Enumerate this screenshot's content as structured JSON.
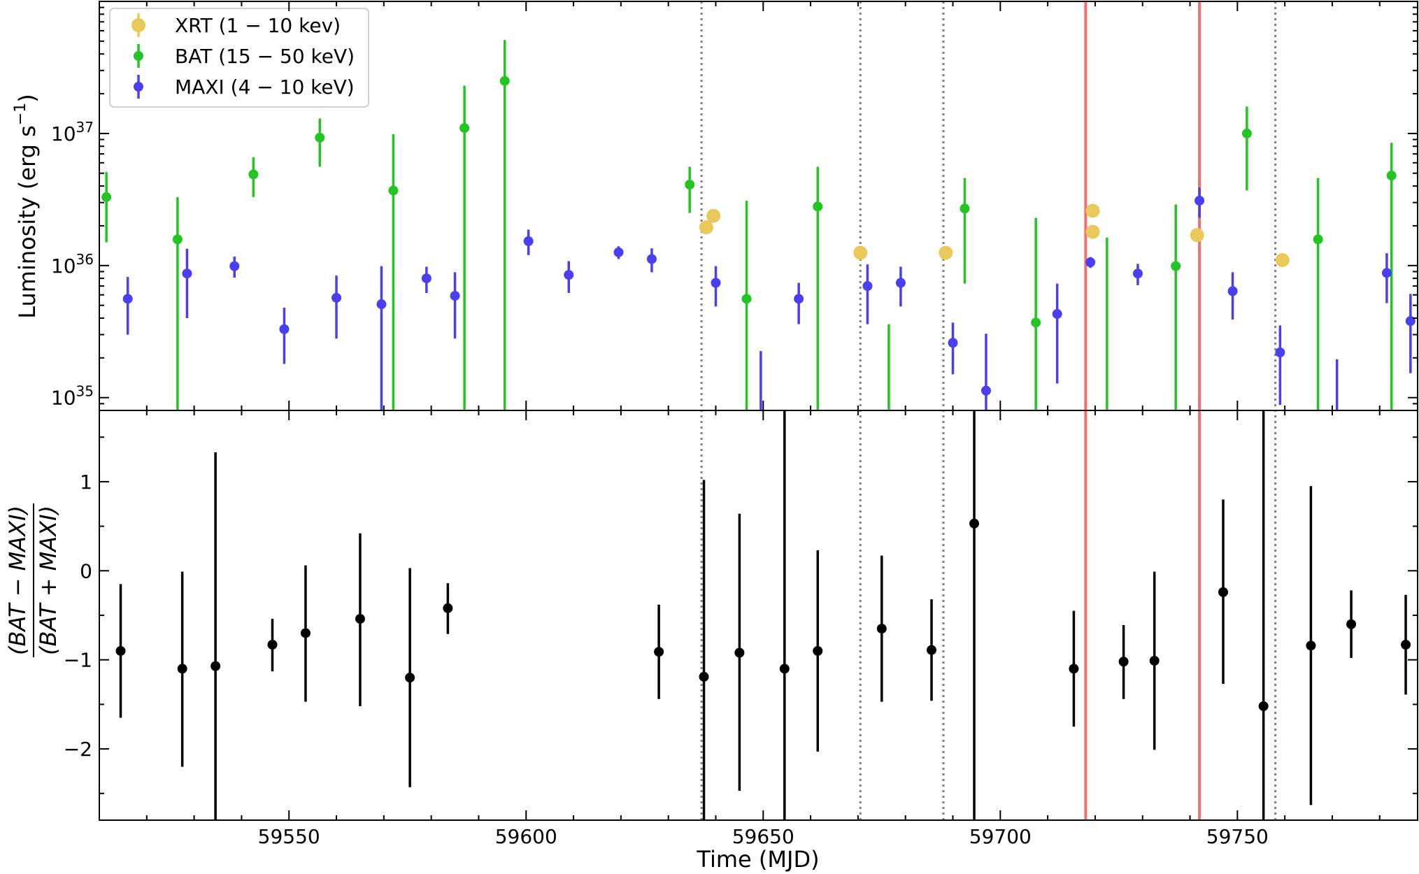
{
  "chart_data": [
    {
      "type": "scatter",
      "panel": "top",
      "ylabel_main": "Luminosity (erg s",
      "ylabel_sup": "−1",
      "ylabel_close": ")",
      "yscale": "log",
      "ylim": [
        8e+34,
        1e+38
      ],
      "xlim": [
        59510,
        59788
      ],
      "yticks": [
        {
          "value": 1e+35,
          "base": "10",
          "exp": "35"
        },
        {
          "value": 1e+36,
          "base": "10",
          "exp": "36"
        },
        {
          "value": 1e+37,
          "base": "10",
          "exp": "37"
        }
      ],
      "legend": {
        "position": "top-left"
      },
      "series": [
        {
          "name": "XRT (1 − 10 kev)",
          "color": "#e8c95a",
          "marker": "large-circle",
          "points": [
            {
              "x": 59638.0,
              "y": 1.95e+36
            },
            {
              "x": 59639.5,
              "y": 2.38e+36
            },
            {
              "x": 59670.5,
              "y": 1.25e+36
            },
            {
              "x": 59688.5,
              "y": 1.25e+36
            },
            {
              "x": 59719.5,
              "y": 2.6e+36
            },
            {
              "x": 59719.5,
              "y": 1.8e+36
            },
            {
              "x": 59741.5,
              "y": 1.7e+36
            },
            {
              "x": 59759.5,
              "y": 1.1e+36
            }
          ]
        },
        {
          "name": "BAT (15 − 50 keV)",
          "color": "#22c522",
          "marker": "circle",
          "points": [
            {
              "x": 59511.5,
              "y": 3.3e+36,
              "lo": 1.5e+36,
              "hi": 5.1e+36
            },
            {
              "x": 59526.5,
              "y": 1.58e+36,
              "lo": 8e+34,
              "hi": 3.3e+36
            },
            {
              "x": 59542.5,
              "y": 4.9e+36,
              "lo": 3.3e+36,
              "hi": 6.6e+36
            },
            {
              "x": 59556.5,
              "y": 9.3e+36,
              "lo": 5.6e+36,
              "hi": 1.3e+37
            },
            {
              "x": 59572.0,
              "y": 3.7e+36,
              "lo": 8e+34,
              "hi": 9.9e+36
            },
            {
              "x": 59587.0,
              "y": 1.1e+37,
              "lo": 8e+34,
              "hi": 2.3e+37
            },
            {
              "x": 59595.5,
              "y": 2.5e+37,
              "lo": 8e+34,
              "hi": 5.1e+37
            },
            {
              "x": 59634.5,
              "y": 4.1e+36,
              "lo": 2.5e+36,
              "hi": 5.6e+36
            },
            {
              "x": 59646.5,
              "y": 5.6e+35,
              "lo": 8e+34,
              "hi": 3.1e+36
            },
            {
              "x": 59661.5,
              "y": 2.8e+36,
              "lo": 8e+34,
              "hi": 5.6e+36
            },
            {
              "x": 59676.5,
              "y": 8e+34,
              "lo": 8e+34,
              "hi": 3.6e+35
            },
            {
              "x": 59692.5,
              "y": 2.7e+36,
              "lo": 7.3e+35,
              "hi": 4.6e+36
            },
            {
              "x": 59707.5,
              "y": 3.7e+35,
              "lo": 8e+34,
              "hi": 2.3e+36
            },
            {
              "x": 59722.5,
              "y": 8e+34,
              "lo": 8e+34,
              "hi": 1.63e+36
            },
            {
              "x": 59737.0,
              "y": 9.9e+35,
              "lo": 8e+34,
              "hi": 2.9e+36
            },
            {
              "x": 59752.0,
              "y": 1e+37,
              "lo": 3.7e+36,
              "hi": 1.6e+37
            },
            {
              "x": 59767.0,
              "y": 1.58e+36,
              "lo": 8e+34,
              "hi": 4.6e+36
            },
            {
              "x": 59782.5,
              "y": 4.8e+36,
              "lo": 8e+34,
              "hi": 8.5e+36
            }
          ]
        },
        {
          "name": "MAXI (4 − 10 keV)",
          "color": "#4a3ff0",
          "marker": "circle",
          "points": [
            {
              "x": 59516.0,
              "y": 5.6e+35,
              "lo": 3e+35,
              "hi": 8.2e+35
            },
            {
              "x": 59528.5,
              "y": 8.7e+35,
              "lo": 4e+35,
              "hi": 1.34e+36
            },
            {
              "x": 59538.5,
              "y": 9.9e+35,
              "lo": 8.1e+35,
              "hi": 1.17e+36
            },
            {
              "x": 59549.0,
              "y": 3.3e+35,
              "lo": 1.8e+35,
              "hi": 4.8e+35
            },
            {
              "x": 59560.0,
              "y": 5.7e+35,
              "lo": 2.8e+35,
              "hi": 8.4e+35
            },
            {
              "x": 59569.5,
              "y": 5.1e+35,
              "lo": 8e+34,
              "hi": 9.9e+35
            },
            {
              "x": 59579.0,
              "y": 8e+35,
              "lo": 6.2e+35,
              "hi": 9.8e+35
            },
            {
              "x": 59585.0,
              "y": 5.9e+35,
              "lo": 2.8e+35,
              "hi": 8.9e+35
            },
            {
              "x": 59600.5,
              "y": 1.53e+36,
              "lo": 1.2e+36,
              "hi": 1.87e+36
            },
            {
              "x": 59609.0,
              "y": 8.5e+35,
              "lo": 6.2e+35,
              "hi": 1.08e+36
            },
            {
              "x": 59619.5,
              "y": 1.26e+36,
              "lo": 1.12e+36,
              "hi": 1.4e+36
            },
            {
              "x": 59626.5,
              "y": 1.12e+36,
              "lo": 8.9e+35,
              "hi": 1.35e+36
            },
            {
              "x": 59640.0,
              "y": 7.4e+35,
              "lo": 4.9e+35,
              "hi": 9.9e+35
            },
            {
              "x": 59649.5,
              "y": 8e+34,
              "lo": 8e+34,
              "hi": 2.25e+35
            },
            {
              "x": 59657.5,
              "y": 5.6e+35,
              "lo": 3.6e+35,
              "hi": 7.4e+35
            },
            {
              "x": 59672.0,
              "y": 7e+35,
              "lo": 3.6e+35,
              "hi": 1.02e+36
            },
            {
              "x": 59679.0,
              "y": 7.4e+35,
              "lo": 4.9e+35,
              "hi": 9.8e+35
            },
            {
              "x": 59690.0,
              "y": 2.6e+35,
              "lo": 1.5e+35,
              "hi": 3.7e+35
            },
            {
              "x": 59697.0,
              "y": 1.13e+35,
              "lo": 8e+34,
              "hi": 3.05e+35
            },
            {
              "x": 59712.0,
              "y": 4.3e+35,
              "lo": 1.28e+35,
              "hi": 7.3e+35
            },
            {
              "x": 59719.0,
              "y": 1.06e+36,
              "lo": 9.6e+35,
              "hi": 1.16e+36
            },
            {
              "x": 59729.0,
              "y": 8.7e+35,
              "lo": 7.1e+35,
              "hi": 1.03e+36
            },
            {
              "x": 59742.0,
              "y": 3.1e+36,
              "lo": 2.3e+36,
              "hi": 3.9e+36
            },
            {
              "x": 59749.0,
              "y": 6.4e+35,
              "lo": 3.9e+35,
              "hi": 8.9e+35
            },
            {
              "x": 59759.0,
              "y": 2.2e+35,
              "lo": 8.8e+34,
              "hi": 3.52e+35
            },
            {
              "x": 59771.0,
              "y": 8e+34,
              "lo": 8e+34,
              "hi": 1.95e+35
            },
            {
              "x": 59781.5,
              "y": 8.8e+35,
              "lo": 5.2e+35,
              "hi": 1.24e+36
            },
            {
              "x": 59786.5,
              "y": 3.8e+35,
              "lo": 1.53e+35,
              "hi": 6.1e+35
            }
          ]
        }
      ]
    },
    {
      "type": "scatter",
      "panel": "bottom",
      "ylabel_numerator": "(BAT − MAXI)",
      "ylabel_denominator": "(BAT + MAXI)",
      "xlabel": "Time (MJD)",
      "xlim": [
        59510,
        59788
      ],
      "ylim": [
        -2.8,
        1.8
      ],
      "xticks": [
        {
          "value": 59550,
          "label": "59550"
        },
        {
          "value": 59600,
          "label": "59600"
        },
        {
          "value": 59650,
          "label": "59650"
        },
        {
          "value": 59700,
          "label": "59700"
        },
        {
          "value": 59750,
          "label": "59750"
        }
      ],
      "yticks": [
        {
          "value": 1,
          "label": "1"
        },
        {
          "value": 0,
          "label": "0"
        },
        {
          "value": -1,
          "label": "−1"
        },
        {
          "value": -2,
          "label": "−2"
        }
      ],
      "series": [
        {
          "color": "#000000",
          "points": [
            {
              "x": 59514.5,
              "y": -0.9,
              "lo": -1.65,
              "hi": -0.15
            },
            {
              "x": 59527.5,
              "y": -1.1,
              "lo": -2.2,
              "hi": -0.01
            },
            {
              "x": 59534.5,
              "y": -1.07,
              "lo": -2.8,
              "hi": 1.33
            },
            {
              "x": 59546.5,
              "y": -0.83,
              "lo": -1.13,
              "hi": -0.54
            },
            {
              "x": 59553.5,
              "y": -0.7,
              "lo": -1.47,
              "hi": 0.06
            },
            {
              "x": 59565.0,
              "y": -0.54,
              "lo": -1.52,
              "hi": 0.42
            },
            {
              "x": 59575.5,
              "y": -1.2,
              "lo": -2.43,
              "hi": 0.03
            },
            {
              "x": 59583.5,
              "y": -0.42,
              "lo": -0.71,
              "hi": -0.14
            },
            {
              "x": 59628.0,
              "y": -0.91,
              "lo": -1.44,
              "hi": -0.38
            },
            {
              "x": 59637.5,
              "y": -1.19,
              "lo": -2.8,
              "hi": 1.02
            },
            {
              "x": 59645.0,
              "y": -0.92,
              "lo": -2.47,
              "hi": 0.64
            },
            {
              "x": 59654.5,
              "y": -1.1,
              "lo": -2.8,
              "hi": 1.8
            },
            {
              "x": 59661.5,
              "y": -0.9,
              "lo": -2.03,
              "hi": 0.23
            },
            {
              "x": 59675.0,
              "y": -0.65,
              "lo": -1.47,
              "hi": 0.17
            },
            {
              "x": 59685.5,
              "y": -0.89,
              "lo": -1.46,
              "hi": -0.32
            },
            {
              "x": 59694.5,
              "y": 0.53,
              "lo": -2.8,
              "hi": 1.8
            },
            {
              "x": 59715.5,
              "y": -1.1,
              "lo": -1.75,
              "hi": -0.45
            },
            {
              "x": 59726.0,
              "y": -1.02,
              "lo": -1.44,
              "hi": -0.61
            },
            {
              "x": 59732.5,
              "y": -1.01,
              "lo": -2.01,
              "hi": -0.01
            },
            {
              "x": 59747.0,
              "y": -0.24,
              "lo": -1.27,
              "hi": 0.8
            },
            {
              "x": 59755.5,
              "y": -1.52,
              "lo": -2.8,
              "hi": 1.8
            },
            {
              "x": 59765.5,
              "y": -0.84,
              "lo": -2.63,
              "hi": 0.95
            },
            {
              "x": 59774.0,
              "y": -0.6,
              "lo": -0.98,
              "hi": -0.22
            },
            {
              "x": 59785.5,
              "y": -0.83,
              "lo": -1.39,
              "hi": -0.27
            }
          ]
        }
      ]
    }
  ],
  "reference_lines": {
    "dotted": {
      "color": "#808080",
      "x": [
        59637,
        59670.5,
        59688,
        59758
      ]
    },
    "solid": {
      "color": "#f07070",
      "x": [
        59718,
        59742
      ]
    }
  }
}
